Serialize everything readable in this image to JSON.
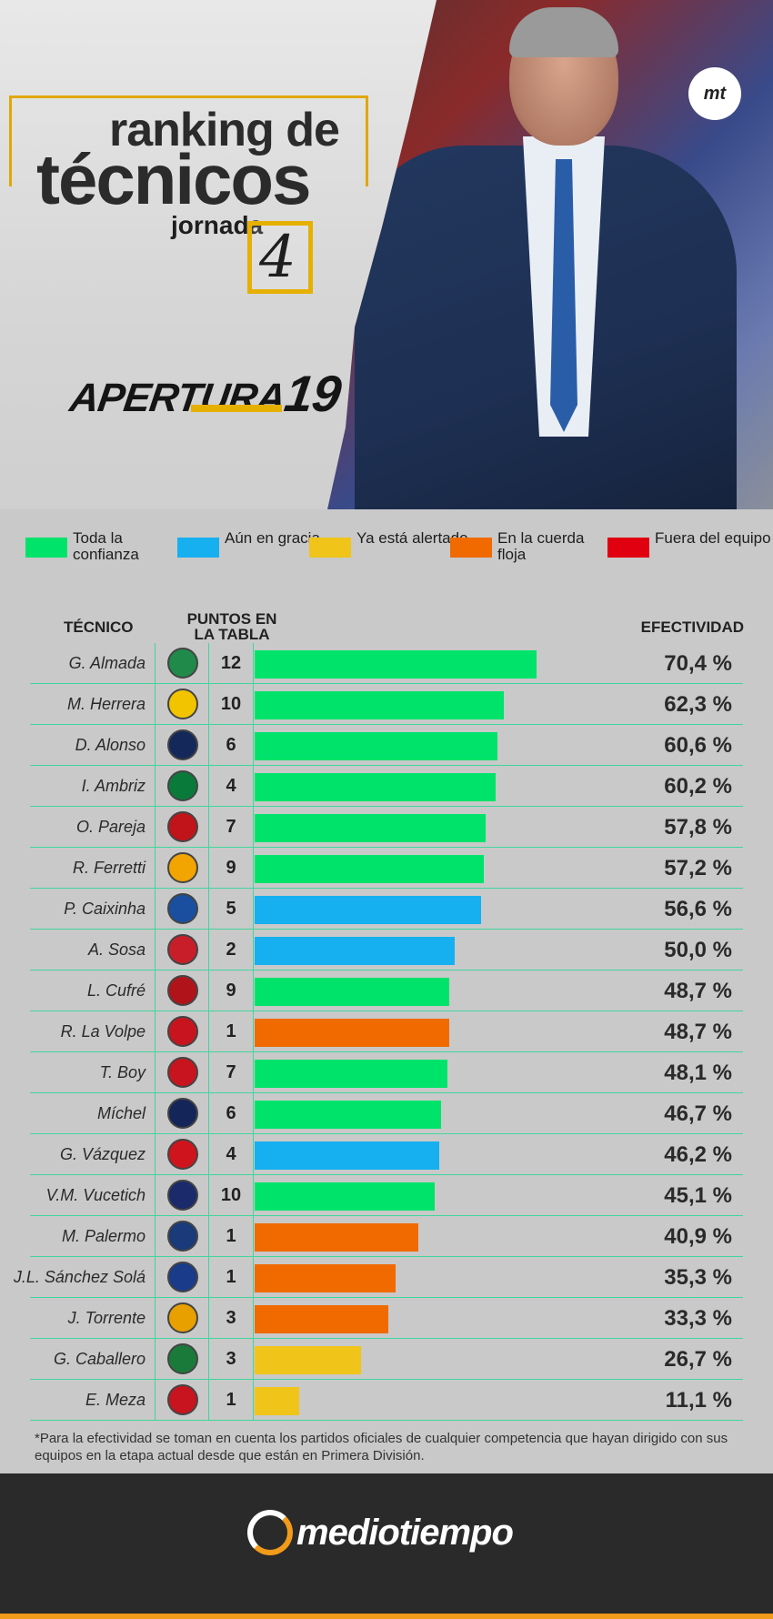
{
  "header": {
    "title_line1": "ranking de",
    "title_line2": "técnicos",
    "jornada_label": "jornada",
    "jornada_number": "4",
    "tournament_word": "APERTURA",
    "tournament_number": "19",
    "corner_logo": "mt"
  },
  "legend": [
    {
      "label": "Toda la confianza",
      "color": "#00e36a"
    },
    {
      "label": "Aún en gracia",
      "color": "#16b0f0"
    },
    {
      "label": "Ya está alertado",
      "color": "#f0c419"
    },
    {
      "label": "En la cuerda floja",
      "color": "#f06a00"
    },
    {
      "label": "Fuera del equipo",
      "color": "#e00010"
    }
  ],
  "table_headers": {
    "coach": "TÉCNICO",
    "points": "PUNTOS EN LA TABLA",
    "effectiveness": "EFECTIVIDAD"
  },
  "chart_data": {
    "type": "bar",
    "orientation": "horizontal",
    "title": "ranking de técnicos",
    "xlim": [
      0,
      100
    ],
    "rows": [
      {
        "coach": "G. Almada",
        "team_crest": "santos-crest",
        "points": 12,
        "effectiveness": 70.4,
        "label": "70,4 %",
        "status": "Toda la confianza"
      },
      {
        "coach": "M. Herrera",
        "team_crest": "america-crest",
        "points": 10,
        "effectiveness": 62.3,
        "label": "62,3 %",
        "status": "Toda la confianza"
      },
      {
        "coach": "D. Alonso",
        "team_crest": "monterrey-crest",
        "points": 6,
        "effectiveness": 60.6,
        "label": "60,6 %",
        "status": "Toda la confianza"
      },
      {
        "coach": "I. Ambriz",
        "team_crest": "leon-crest",
        "points": 4,
        "effectiveness": 60.2,
        "label": "60,2 %",
        "status": "Toda la confianza"
      },
      {
        "coach": "O. Pareja",
        "team_crest": "tijuana-crest",
        "points": 7,
        "effectiveness": 57.8,
        "label": "57,8 %",
        "status": "Toda la confianza"
      },
      {
        "coach": "R. Ferretti",
        "team_crest": "tigres-crest",
        "points": 9,
        "effectiveness": 57.2,
        "label": "57,2 %",
        "status": "Toda la confianza"
      },
      {
        "coach": "P. Caixinha",
        "team_crest": "cruz-azul-crest",
        "points": 5,
        "effectiveness": 56.6,
        "label": "56,6 %",
        "status": "Aún en gracia"
      },
      {
        "coach": "A. Sosa",
        "team_crest": "san-luis-crest",
        "points": 2,
        "effectiveness": 50.0,
        "label": "50,0 %",
        "status": "Aún en gracia"
      },
      {
        "coach": "L. Cufré",
        "team_crest": "atlas-crest",
        "points": 9,
        "effectiveness": 48.7,
        "label": "48,7 %",
        "status": "Toda la confianza"
      },
      {
        "coach": "R. La Volpe",
        "team_crest": "toluca-crest",
        "points": 1,
        "effectiveness": 48.7,
        "label": "48,7 %",
        "status": "En la cuerda floja"
      },
      {
        "coach": "T. Boy",
        "team_crest": "chivas-crest",
        "points": 7,
        "effectiveness": 48.1,
        "label": "48,1 %",
        "status": "Toda la confianza"
      },
      {
        "coach": "Míchel",
        "team_crest": "pumas-crest",
        "points": 6,
        "effectiveness": 46.7,
        "label": "46,7 %",
        "status": "Toda la confianza"
      },
      {
        "coach": "G. Vázquez",
        "team_crest": "necaxa-crest",
        "points": 4,
        "effectiveness": 46.2,
        "label": "46,2 %",
        "status": "Aún en gracia"
      },
      {
        "coach": "V.M. Vucetich",
        "team_crest": "queretaro-crest",
        "points": 10,
        "effectiveness": 45.1,
        "label": "45,1 %",
        "status": "Toda la confianza"
      },
      {
        "coach": "M. Palermo",
        "team_crest": "pachuca-crest",
        "points": 1,
        "effectiveness": 40.9,
        "label": "40,9 %",
        "status": "En la cuerda floja"
      },
      {
        "coach": "J.L. Sánchez Solá",
        "team_crest": "puebla-crest",
        "points": 1,
        "effectiveness": 35.3,
        "label": "35,3 %",
        "status": "En la cuerda floja"
      },
      {
        "coach": "J. Torrente",
        "team_crest": "morelia-crest",
        "points": 3,
        "effectiveness": 33.3,
        "label": "33,3 %",
        "status": "En la cuerda floja"
      },
      {
        "coach": "G. Caballero",
        "team_crest": "juarez-crest",
        "points": 3,
        "effectiveness": 26.7,
        "label": "26,7 %",
        "status": "Ya está alertado"
      },
      {
        "coach": "E. Meza",
        "team_crest": "veracruz-crest",
        "points": 1,
        "effectiveness": 11.1,
        "label": "11,1 %",
        "status": "Ya está alertado"
      }
    ]
  },
  "crest_colors": {
    "santos-crest": "#1f8a4a",
    "america-crest": "#f2c400",
    "monterrey-crest": "#15285a",
    "leon-crest": "#0a7a3a",
    "tijuana-crest": "#c0141a",
    "tigres-crest": "#f2a400",
    "cruz-azul-crest": "#1a4fa0",
    "san-luis-crest": "#c81e2a",
    "atlas-crest": "#b0141a",
    "toluca-crest": "#c8141e",
    "chivas-crest": "#c8141e",
    "pumas-crest": "#14255a",
    "necaxa-crest": "#d0141e",
    "queretaro-crest": "#1a2a6a",
    "pachuca-crest": "#1a3a7a",
    "puebla-crest": "#1a3a8a",
    "morelia-crest": "#e8a000",
    "juarez-crest": "#1a7a3a",
    "veracruz-crest": "#c8141e"
  },
  "footnote": "*Para la efectividad se toman en cuenta los partidos oficiales de cualquier competencia que hayan dirigido con sus equipos en la etapa actual desde que están en Primera División.",
  "footer": {
    "brand": "mediotiempo"
  }
}
